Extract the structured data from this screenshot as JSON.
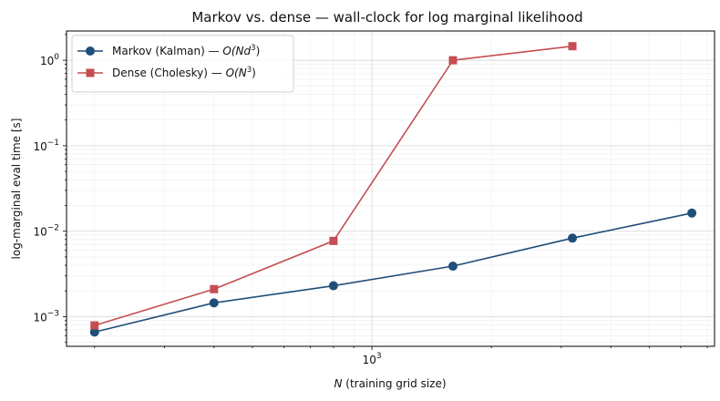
{
  "chart_data": {
    "type": "line",
    "title": "Markov vs. dense — wall-clock for log marginal likelihood",
    "xlabel": "N (training grid size)",
    "ylabel": "log-marginal eval time [s]",
    "x_scale": "log",
    "y_scale": "log",
    "xlim": [
      170,
      7300
    ],
    "ylim": [
      0.00045,
      2.2
    ],
    "grid": true,
    "legend_position": "top-left",
    "x_ticks": [
      {
        "value": 1000,
        "base": "10",
        "exp": "3"
      }
    ],
    "y_ticks": [
      {
        "value": 0.001,
        "base": "10",
        "exp": "−3"
      },
      {
        "value": 0.01,
        "base": "10",
        "exp": "−2"
      },
      {
        "value": 0.1,
        "base": "10",
        "exp": "−1"
      },
      {
        "value": 1,
        "base": "10",
        "exp": "0"
      }
    ],
    "series": [
      {
        "name": "Markov (Kalman) — O(Nd³)",
        "legend_prefix": "Markov (Kalman) — ",
        "legend_math": "O(Nd",
        "legend_sup": "3",
        "legend_close": ")",
        "color": "#1f4e79",
        "marker": "circle",
        "x": [
          200,
          400,
          800,
          1600,
          3200,
          6400
        ],
        "y": [
          0.00066,
          0.00145,
          0.0023,
          0.0039,
          0.0083,
          0.0163
        ]
      },
      {
        "name": "Dense (Cholesky) — O(N³)",
        "legend_prefix": "Dense (Cholesky) — ",
        "legend_math": "O(N",
        "legend_sup": "3",
        "legend_close": ")",
        "color": "#c44e52",
        "marker": "square",
        "x": [
          200,
          400,
          800,
          1600,
          3200
        ],
        "y": [
          0.00079,
          0.0021,
          0.0077,
          1.0,
          1.46
        ]
      }
    ]
  }
}
